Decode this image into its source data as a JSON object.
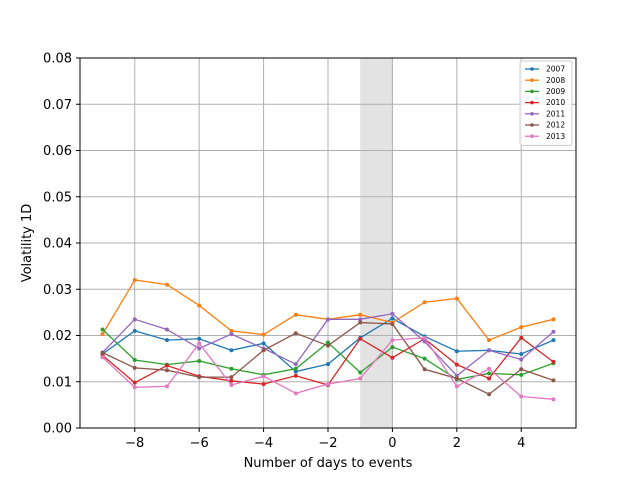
{
  "chart_data": {
    "type": "line",
    "title": "",
    "xlabel": "Number of days to events",
    "ylabel": "Volatility 1D",
    "x": [
      -9,
      -8,
      -7,
      -6,
      -5,
      -4,
      -3,
      -2,
      -1,
      0,
      1,
      2,
      3,
      4,
      5
    ],
    "xlim": [
      -9.7,
      5.7
    ],
    "ylim": [
      0,
      0.08
    ],
    "xticks": [
      -8,
      -6,
      -4,
      -2,
      0,
      2,
      4
    ],
    "xtick_labels": [
      "−8",
      "−6",
      "−4",
      "−2",
      "0",
      "2",
      "4"
    ],
    "yticks": [
      0,
      0.01,
      0.02,
      0.03,
      0.04,
      0.05,
      0.06,
      0.07,
      0.08
    ],
    "ytick_labels": [
      "0.00",
      "0.01",
      "0.02",
      "0.03",
      "0.04",
      "0.05",
      "0.06",
      "0.07",
      "0.08"
    ],
    "grid": true,
    "legend_position": "top-right",
    "shaded_region": {
      "x_start": -1,
      "x_end": 0,
      "color": "#e3e3e3"
    },
    "series": [
      {
        "name": "2007",
        "color": "#1f77b4",
        "values": [
          0.016,
          0.021,
          0.019,
          0.0193,
          0.0168,
          0.0183,
          0.0122,
          0.0138,
          0.0195,
          0.0237,
          0.0198,
          0.0166,
          0.0168,
          0.016,
          0.019
        ]
      },
      {
        "name": "2008",
        "color": "#ff7f0e",
        "values": [
          0.0203,
          0.032,
          0.031,
          0.0265,
          0.021,
          0.0202,
          0.0245,
          0.0235,
          0.0245,
          0.0228,
          0.0272,
          0.028,
          0.019,
          0.0218,
          0.0235
        ]
      },
      {
        "name": "2009",
        "color": "#2ca02c",
        "values": [
          0.0213,
          0.0147,
          0.0137,
          0.0145,
          0.0128,
          0.0115,
          0.0128,
          0.0185,
          0.012,
          0.0175,
          0.015,
          0.0105,
          0.0118,
          0.0115,
          0.014
        ]
      },
      {
        "name": "2010",
        "color": "#d62728",
        "values": [
          0.0157,
          0.0098,
          0.0135,
          0.0112,
          0.0102,
          0.0095,
          0.0113,
          0.0093,
          0.0193,
          0.0152,
          0.0193,
          0.0137,
          0.0107,
          0.0195,
          0.0143
        ]
      },
      {
        "name": "2011",
        "color": "#9467bd",
        "values": [
          0.0163,
          0.0235,
          0.0213,
          0.0172,
          0.0203,
          0.0172,
          0.0138,
          0.0235,
          0.0235,
          0.0247,
          0.0187,
          0.0113,
          0.0168,
          0.0148,
          0.0208
        ]
      },
      {
        "name": "2012",
        "color": "#8c564b",
        "values": [
          0.0163,
          0.013,
          0.0125,
          0.011,
          0.011,
          0.0168,
          0.0205,
          0.0178,
          0.0228,
          0.0225,
          0.0127,
          0.0107,
          0.0073,
          0.0127,
          0.0103
        ]
      },
      {
        "name": "2013",
        "color": "#e377c2",
        "values": [
          0.0153,
          0.0088,
          0.009,
          0.0183,
          0.0093,
          0.0112,
          0.0075,
          0.0095,
          0.0107,
          0.019,
          0.0195,
          0.009,
          0.0128,
          0.0068,
          0.0062
        ]
      }
    ]
  }
}
